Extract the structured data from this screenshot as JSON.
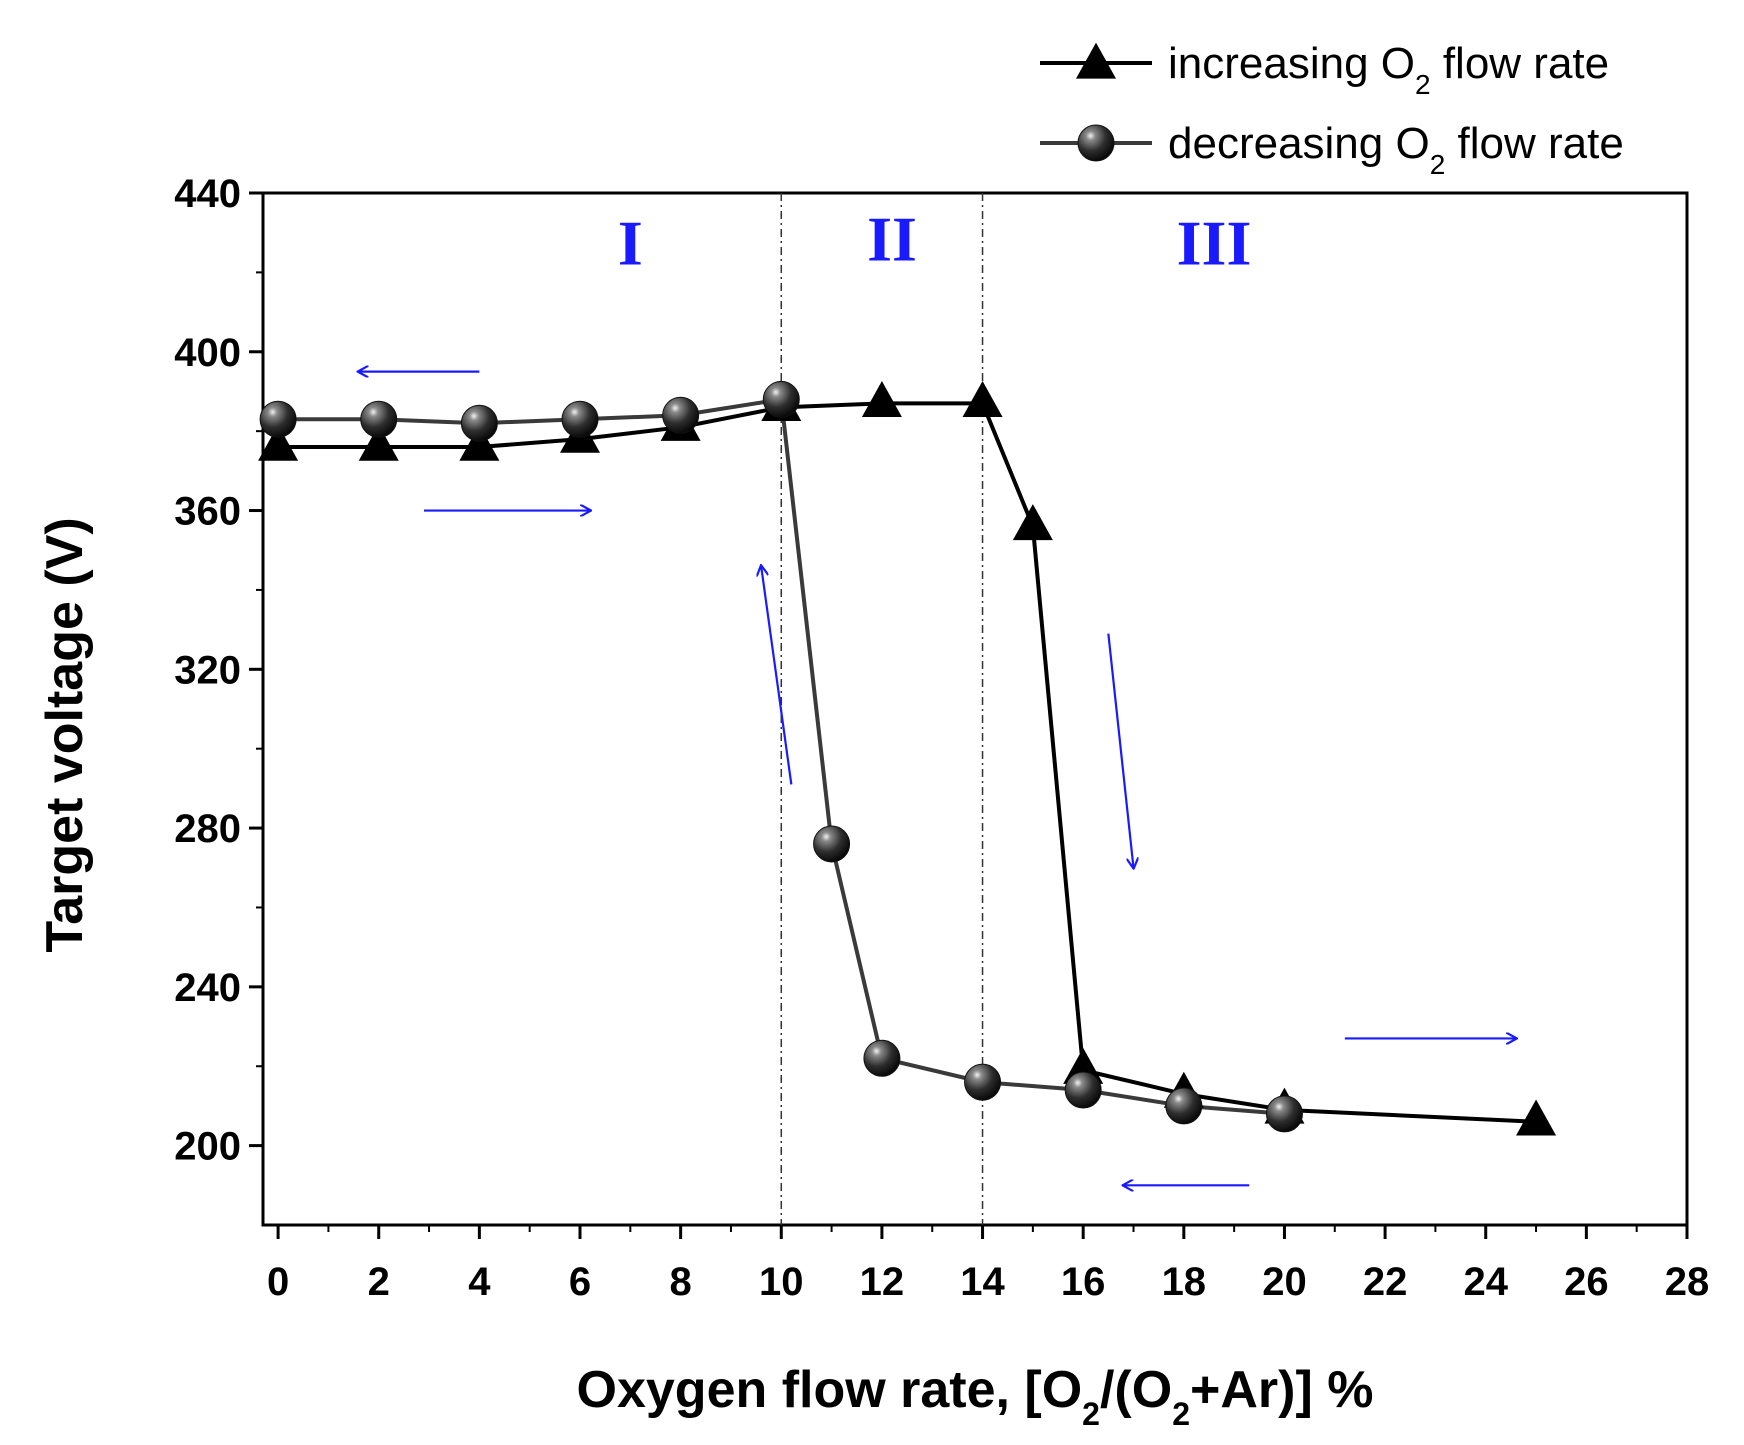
{
  "chart_data": {
    "type": "line",
    "xlabel": "Oxygen flow rate, [O2/(O2+Ar)] %",
    "xlabel_parts": {
      "a": "Oxygen flow rate, [O",
      "sub1": "2",
      "b": "/(O",
      "sub2": "2",
      "c": "+Ar)] %"
    },
    "ylabel": "Target voltage (V)",
    "xlim": [
      -0.3,
      28
    ],
    "ylim": [
      180,
      440
    ],
    "xticks": [
      0,
      2,
      4,
      6,
      8,
      10,
      12,
      14,
      16,
      18,
      20,
      22,
      24,
      26,
      28
    ],
    "yticks": [
      200,
      240,
      280,
      320,
      360,
      400,
      440
    ],
    "grid": false,
    "legend_position": "top-right, outside plot",
    "series": [
      {
        "name": "increasing O2 flow rate",
        "name_parts": {
          "a": "increasing O",
          "sub": "2",
          "b": " flow rate"
        },
        "marker": "triangle",
        "color": "#000000",
        "x": [
          0,
          2,
          4,
          6,
          8,
          10,
          12,
          14,
          15,
          16,
          18,
          20,
          25
        ],
        "y": [
          376,
          376,
          376,
          378,
          381,
          386,
          387,
          387,
          356,
          219,
          213,
          209,
          206
        ]
      },
      {
        "name": "decreasing O2 flow rate",
        "name_parts": {
          "a": "decreasing O",
          "sub": "2",
          "b": " flow rate"
        },
        "marker": "sphere",
        "color": "#3a3a3a",
        "x": [
          0,
          2,
          4,
          6,
          8,
          10,
          11,
          12,
          14,
          16,
          18,
          20
        ],
        "y": [
          383,
          383,
          382,
          383,
          384,
          388,
          276,
          222,
          216,
          214,
          210,
          208
        ]
      }
    ],
    "reference_lines": [
      {
        "axis": "x",
        "value": 10,
        "style": "dash-dot"
      },
      {
        "axis": "x",
        "value": 14,
        "style": "dash-dot"
      }
    ],
    "regions": [
      {
        "label": "I",
        "x": 7,
        "y": 422
      },
      {
        "label": "II",
        "x": 12.2,
        "y": 423
      },
      {
        "label": "III",
        "x": 18.6,
        "y": 422
      }
    ],
    "annotations_color": "#1a1aff",
    "arrows": [
      {
        "from": [
          4,
          395
        ],
        "to": [
          1.6,
          395
        ]
      },
      {
        "from": [
          2.9,
          360
        ],
        "to": [
          6.2,
          360
        ]
      },
      {
        "from": [
          10.2,
          291
        ],
        "to": [
          9.6,
          346
        ]
      },
      {
        "from": [
          16.5,
          329
        ],
        "to": [
          17,
          270
        ]
      },
      {
        "from": [
          21.2,
          227
        ],
        "to": [
          24.6,
          227
        ]
      },
      {
        "from": [
          19.3,
          190
        ],
        "to": [
          16.8,
          190
        ]
      }
    ]
  }
}
